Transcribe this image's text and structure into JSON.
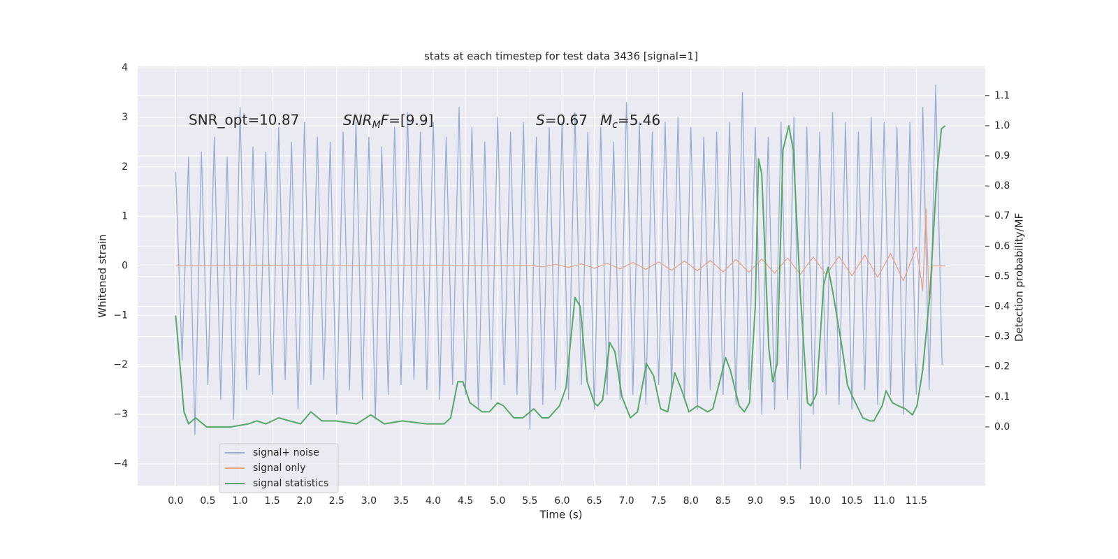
{
  "chart_data": {
    "type": "line",
    "title": "stats at each timestep for test data 3436 [signal=1]",
    "xlabel": "Time (s)",
    "ylabel": "Whitened strain",
    "y2label": "Detection probability/MF",
    "annotations": {
      "snr_opt": "SNR_opt=10.87",
      "snr_mf": {
        "base": "SNR",
        "sub": "M",
        "tail_sym": "F",
        "tail": "=[9.9]"
      },
      "s": {
        "sym": "S",
        "tail": "=0.67"
      },
      "mc": {
        "sym": "M",
        "sub": "c",
        "tail": "=5.46"
      }
    },
    "xlim": [
      -0.59,
      12.57
    ],
    "ylim": [
      -4.44,
      4.03
    ],
    "y2lim": [
      -0.195,
      1.197
    ],
    "xticks": [
      {
        "value": 0,
        "label": "0.0"
      },
      0.5,
      {
        "value": 1,
        "label": "1.0"
      },
      1.5,
      {
        "value": 2,
        "label": "2.0"
      },
      2.5,
      {
        "value": 3,
        "label": "3.0"
      },
      3.5,
      {
        "value": 4,
        "label": "4.0"
      },
      4.5,
      {
        "value": 5,
        "label": "5.0"
      },
      5.5,
      {
        "value": 6,
        "label": "6.0"
      },
      6.5,
      {
        "value": 7,
        "label": "7.0"
      },
      7.5,
      {
        "value": 8,
        "label": "8.0"
      },
      8.5,
      {
        "value": 9,
        "label": "9.0"
      },
      9.5,
      {
        "value": 10,
        "label": "10.0"
      },
      10.5,
      {
        "value": 11,
        "label": "11.0"
      },
      11.5
    ],
    "yticks": [
      {
        "value": -4,
        "label": "−4"
      },
      {
        "value": -3,
        "label": "−3"
      },
      {
        "value": -2,
        "label": "−2"
      },
      {
        "value": -1,
        "label": "−1"
      },
      0,
      1,
      2,
      3,
      4
    ],
    "y2ticks": [
      {
        "value": 0,
        "label": "0.0"
      },
      0.1,
      0.2,
      0.3,
      0.4,
      0.5,
      0.6,
      0.7,
      0.8,
      0.9,
      {
        "value": 1,
        "label": "1.0"
      },
      1.1
    ],
    "grid": true,
    "legend": "lower left",
    "series": [
      {
        "name": "signal+ noise",
        "color": "#9aabd2",
        "x": [
          0,
          0.1,
          0.2,
          0.3,
          0.4,
          0.5,
          0.6,
          0.7,
          0.8,
          0.9,
          1,
          1.1,
          1.2,
          1.3,
          1.4,
          1.5,
          1.6,
          1.7,
          1.8,
          1.9,
          2,
          2.1,
          2.2,
          2.3,
          2.4,
          2.5,
          2.6,
          2.7,
          2.8,
          2.9,
          3,
          3.1,
          3.2,
          3.3,
          3.4,
          3.5,
          3.6,
          3.7,
          3.8,
          3.9,
          4,
          4.1,
          4.2,
          4.3,
          4.4,
          4.5,
          4.6,
          4.7,
          4.8,
          4.9,
          5,
          5.1,
          5.2,
          5.3,
          5.4,
          5.5,
          5.6,
          5.7,
          5.8,
          5.9,
          6,
          6.1,
          6.2,
          6.3,
          6.4,
          6.5,
          6.6,
          6.7,
          6.8,
          6.9,
          7,
          7.1,
          7.2,
          7.3,
          7.4,
          7.5,
          7.6,
          7.7,
          7.8,
          7.9,
          8,
          8.1,
          8.2,
          8.3,
          8.4,
          8.5,
          8.6,
          8.7,
          8.8,
          8.9,
          9,
          9.1,
          9.2,
          9.3,
          9.4,
          9.5,
          9.6,
          9.7,
          9.8,
          9.9,
          10,
          10.1,
          10.2,
          10.3,
          10.4,
          10.5,
          10.6,
          10.7,
          10.8,
          10.9,
          11,
          11.1,
          11.2,
          11.3,
          11.4,
          11.5,
          11.6,
          11.7,
          11.8,
          11.9
        ],
        "values": [
          1.9,
          -1.9,
          2.2,
          -3.4,
          2.3,
          -2.4,
          2.6,
          -2.7,
          2.2,
          -3.1,
          3.2,
          -2.5,
          2.4,
          -2.2,
          2.3,
          -2.6,
          2.8,
          -2.3,
          2.5,
          -2.9,
          2.9,
          -2.4,
          2.6,
          -2.3,
          2.5,
          -3.0,
          2.7,
          -2.5,
          2.9,
          -2.7,
          2.6,
          -3.1,
          2.4,
          -2.6,
          2.8,
          -2.4,
          3.1,
          -2.3,
          2.7,
          -2.5,
          2.9,
          -2.7,
          2.6,
          -2.4,
          3.2,
          -2.6,
          2.8,
          -2.9,
          2.5,
          -2.7,
          3.0,
          -2.4,
          2.7,
          -2.6,
          2.9,
          -3.3,
          2.6,
          -2.8,
          2.8,
          -2.5,
          2.9,
          -2.7,
          3.1,
          -2.4,
          2.7,
          -2.9,
          2.8,
          -2.6,
          2.5,
          -2.7,
          3.3,
          -2.6,
          2.9,
          -2.8,
          2.7,
          -2.4,
          2.9,
          -2.5,
          3.0,
          -2.7,
          2.8,
          -2.9,
          2.6,
          -2.5,
          2.7,
          -2.6,
          2.9,
          -2.8,
          3.5,
          -2.5,
          2.8,
          -3.0,
          2.6,
          -2.9,
          2.9,
          -2.7,
          3.0,
          -4.1,
          2.8,
          -3.0,
          2.7,
          -2.6,
          3.1,
          -2.8,
          2.9,
          -2.9,
          2.7,
          -2.5,
          3.0,
          -2.8,
          2.9,
          -2.6,
          2.8,
          -3.0,
          2.9,
          -2.6,
          3.2,
          -2.5,
          3.65,
          -2.0
        ]
      },
      {
        "name": "signal only",
        "color": "#e0a48a",
        "x": [
          0,
          5.5,
          5.7,
          5.9,
          6.1,
          6.3,
          6.5,
          6.7,
          6.9,
          7.1,
          7.3,
          7.5,
          7.7,
          7.9,
          8.1,
          8.3,
          8.5,
          8.7,
          8.9,
          9.1,
          9.3,
          9.5,
          9.7,
          9.9,
          10.1,
          10.3,
          10.5,
          10.7,
          10.9,
          11.1,
          11.3,
          11.5,
          11.6,
          11.65,
          11.7,
          11.75,
          11.95
        ],
        "values": [
          0,
          0.01,
          -0.02,
          0.03,
          -0.03,
          0.04,
          -0.05,
          0.05,
          -0.06,
          0.07,
          -0.07,
          0.08,
          -0.09,
          0.1,
          -0.1,
          0.11,
          -0.12,
          0.13,
          -0.13,
          0.14,
          -0.15,
          0.16,
          -0.17,
          0.18,
          -0.18,
          0.19,
          -0.2,
          0.22,
          -0.23,
          0.25,
          -0.3,
          0.38,
          -0.5,
          1.15,
          -0.8,
          0,
          0
        ]
      },
      {
        "name": "signal statistics",
        "color": "#55a868",
        "axis": "y2",
        "x": [
          0,
          0.13,
          0.2,
          0.31,
          0.48,
          0.86,
          1.13,
          1.26,
          1.4,
          1.6,
          1.94,
          2.1,
          2.27,
          2.49,
          2.81,
          3.03,
          3.24,
          3.52,
          3.9,
          4.17,
          4.27,
          4.38,
          4.46,
          4.57,
          4.76,
          4.87,
          5.0,
          5.09,
          5.25,
          5.39,
          5.56,
          5.69,
          5.79,
          5.96,
          6.06,
          6.2,
          6.28,
          6.39,
          6.5,
          6.55,
          6.63,
          6.74,
          6.82,
          6.93,
          7.06,
          7.17,
          7.31,
          7.42,
          7.53,
          7.64,
          7.75,
          7.86,
          7.97,
          8.1,
          8.26,
          8.34,
          8.54,
          8.61,
          8.75,
          8.83,
          8.91,
          9.0,
          9.05,
          9.1,
          9.21,
          9.27,
          9.34,
          9.43,
          9.52,
          9.59,
          9.7,
          9.81,
          9.86,
          9.95,
          10.06,
          10.13,
          10.21,
          10.35,
          10.43,
          10.51,
          10.67,
          10.78,
          10.84,
          10.97,
          11.03,
          11.13,
          11.22,
          11.33,
          11.44,
          11.51,
          11.6,
          11.71,
          11.82,
          11.89,
          11.95
        ],
        "values": [
          0.37,
          0.05,
          0.01,
          0.03,
          0.0,
          0.0,
          0.01,
          0.02,
          0.01,
          0.03,
          0.01,
          0.05,
          0.02,
          0.02,
          0.01,
          0.04,
          0.01,
          0.02,
          0.01,
          0.01,
          0.03,
          0.15,
          0.15,
          0.08,
          0.05,
          0.05,
          0.08,
          0.07,
          0.03,
          0.03,
          0.06,
          0.03,
          0.03,
          0.07,
          0.13,
          0.43,
          0.4,
          0.15,
          0.08,
          0.07,
          0.09,
          0.28,
          0.25,
          0.1,
          0.03,
          0.05,
          0.21,
          0.17,
          0.06,
          0.05,
          0.18,
          0.12,
          0.05,
          0.07,
          0.05,
          0.06,
          0.23,
          0.19,
          0.07,
          0.05,
          0.08,
          0.4,
          0.89,
          0.84,
          0.26,
          0.15,
          0.21,
          0.92,
          1.0,
          0.92,
          0.44,
          0.08,
          0.07,
          0.11,
          0.47,
          0.53,
          0.44,
          0.26,
          0.14,
          0.1,
          0.03,
          0.02,
          0.02,
          0.07,
          0.12,
          0.08,
          0.07,
          0.06,
          0.04,
          0.07,
          0.19,
          0.44,
          0.84,
          0.99,
          1.0
        ]
      }
    ]
  }
}
